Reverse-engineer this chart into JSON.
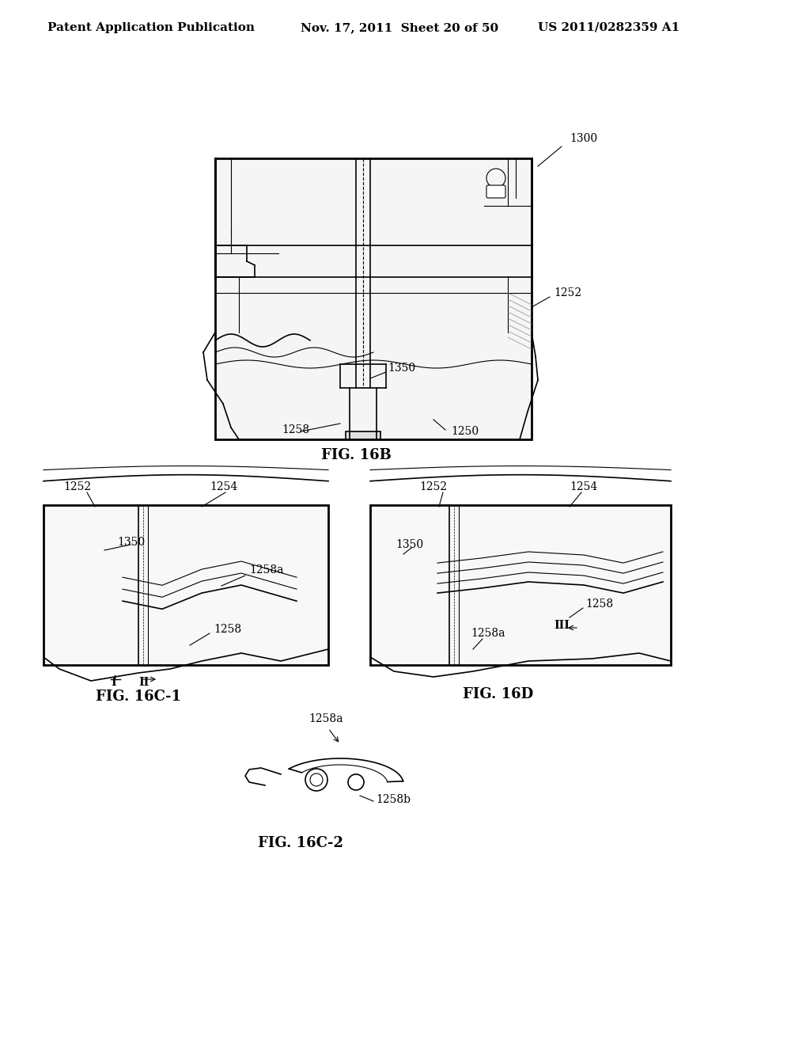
{
  "bg_color": "#ffffff",
  "header_left": "Patent Application Publication",
  "header_mid": "Nov. 17, 2011  Sheet 20 of 50",
  "header_right": "US 2011/0282359 A1",
  "fig_16b_title": "FIG. 16B",
  "fig_16c1_title": "FIG. 16C-1",
  "fig_16c2_title": "FIG. 16C-2",
  "fig_16d_title": "FIG. 16D",
  "label_1300": "1300",
  "label_1252_top": "1252",
  "label_1350_top": "1350",
  "label_1258_top": "1258",
  "label_1250": "1250",
  "label_1252_c1": "1252",
  "label_1254_c1": "1254",
  "label_1350_c1": "1350",
  "label_1258a_c1": "1258a",
  "label_1258_c1": "1258",
  "label_1252_d": "1252",
  "label_1254_d": "1254",
  "label_1350_d": "1350",
  "label_1258a_d": "1258a",
  "label_1258_d": "1258",
  "label_III": "III",
  "label_1258a_c2": "1258a",
  "label_1258b": "1258b",
  "label_I": "I",
  "label_II": "II",
  "line_color": "#000000",
  "text_color": "#000000",
  "header_fontsize": 11,
  "label_fontsize": 10,
  "fig_title_fontsize": 13
}
